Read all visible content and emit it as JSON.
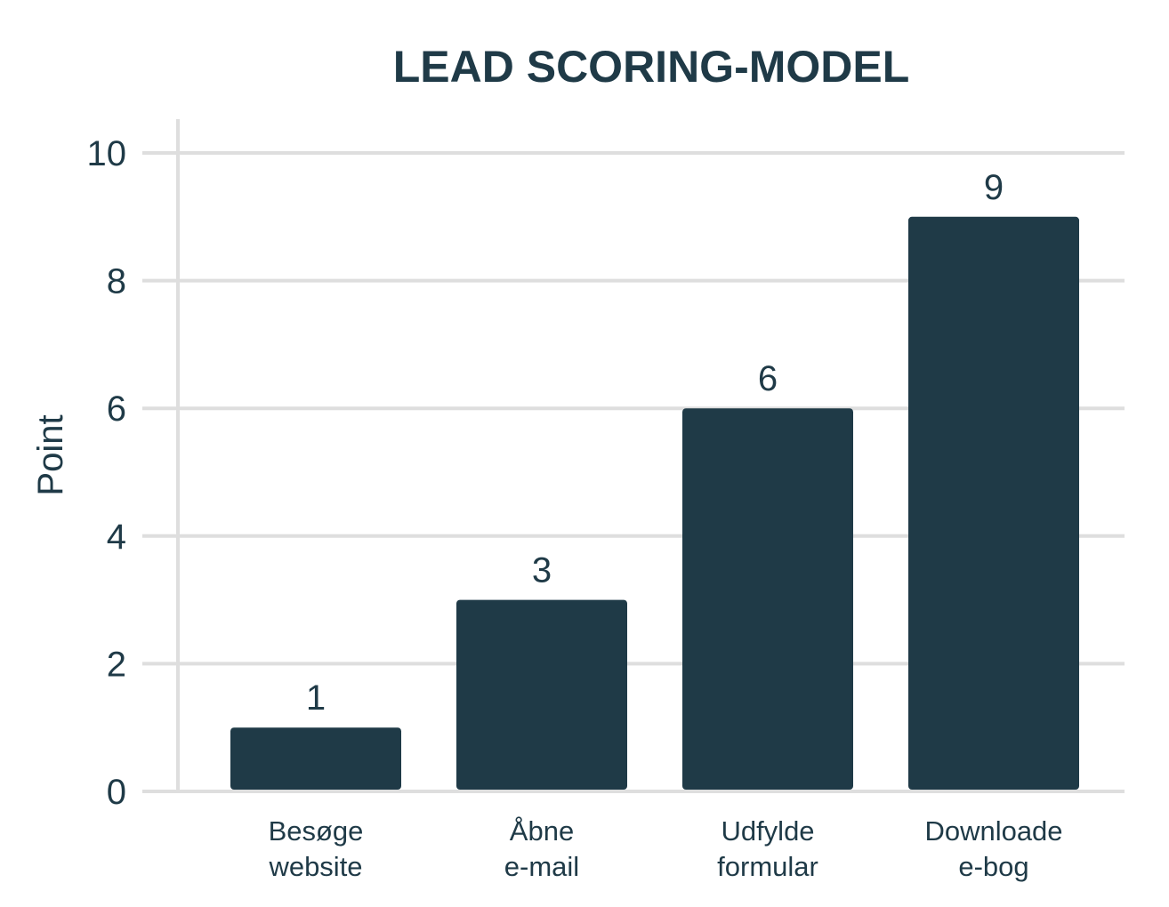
{
  "chart_data": {
    "type": "bar",
    "title": "LEAD SCORING-MODEL",
    "ylabel": "Point",
    "xlabel": "",
    "categories": [
      [
        "Besøge",
        "website"
      ],
      [
        "Åbne",
        "e-mail"
      ],
      [
        "Udfylde",
        "formular"
      ],
      [
        "Downloade",
        "e-bog"
      ]
    ],
    "values": [
      1,
      3,
      6,
      9
    ],
    "data_labels": [
      "1",
      "3",
      "6",
      "9"
    ],
    "ylim": [
      0,
      10
    ],
    "yticks": [
      0,
      2,
      4,
      6,
      8,
      10
    ],
    "ytick_labels": [
      "0",
      "2",
      "4",
      "6",
      "8",
      "10"
    ],
    "grid": true,
    "legend": "none",
    "colors": {
      "bar": "#1f3a47",
      "grid": "#dedede",
      "text": "#1f3a47"
    }
  }
}
